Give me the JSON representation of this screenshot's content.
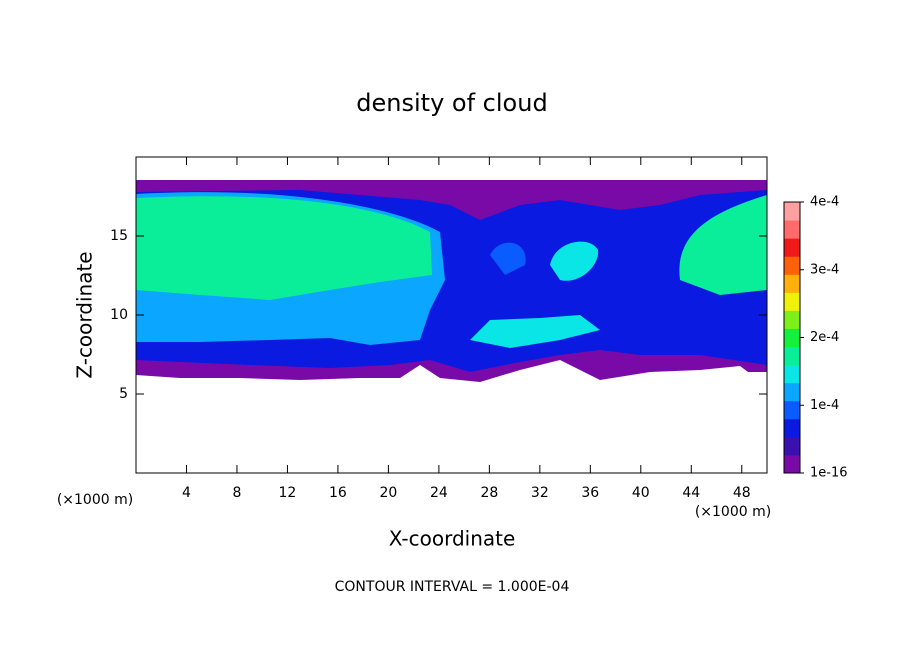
{
  "chart_data": {
    "type": "contour",
    "title": "density of cloud",
    "x_label": "X-coordinate",
    "y_label": "Z-coordinate",
    "x_unit_left": "(×1000 m)",
    "x_unit_right": "(×1000 m)",
    "annotation": "CONTOUR INTERVAL = 1.000E-04",
    "xlim": [
      0,
      50
    ],
    "xticks": [
      4,
      8,
      12,
      16,
      20,
      24,
      28,
      32,
      36,
      40,
      44,
      48
    ],
    "ylim": [
      0,
      20
    ],
    "yticks": [
      5,
      10,
      15
    ],
    "zlim": [
      1e-16,
      0.0004
    ],
    "zticks": [
      {
        "value": 1e-16,
        "label": "1e-16"
      },
      {
        "value": 0.0001,
        "label": "1e-4"
      },
      {
        "value": 0.0002,
        "label": "2e-4"
      },
      {
        "value": 0.0003,
        "label": "3e-4"
      },
      {
        "value": 0.0004,
        "label": "4e-4"
      }
    ],
    "colormap": [
      "#7a0aa8",
      "#3a10b0",
      "#0a1ae0",
      "#0a5cff",
      "#0aa6ff",
      "#0ae6e6",
      "#0aee9a",
      "#14f03c",
      "#7cf018",
      "#f0f00a",
      "#ffb00a",
      "#ff600a",
      "#f01818",
      "#ff6a6a",
      "#ffa0a0"
    ]
  }
}
